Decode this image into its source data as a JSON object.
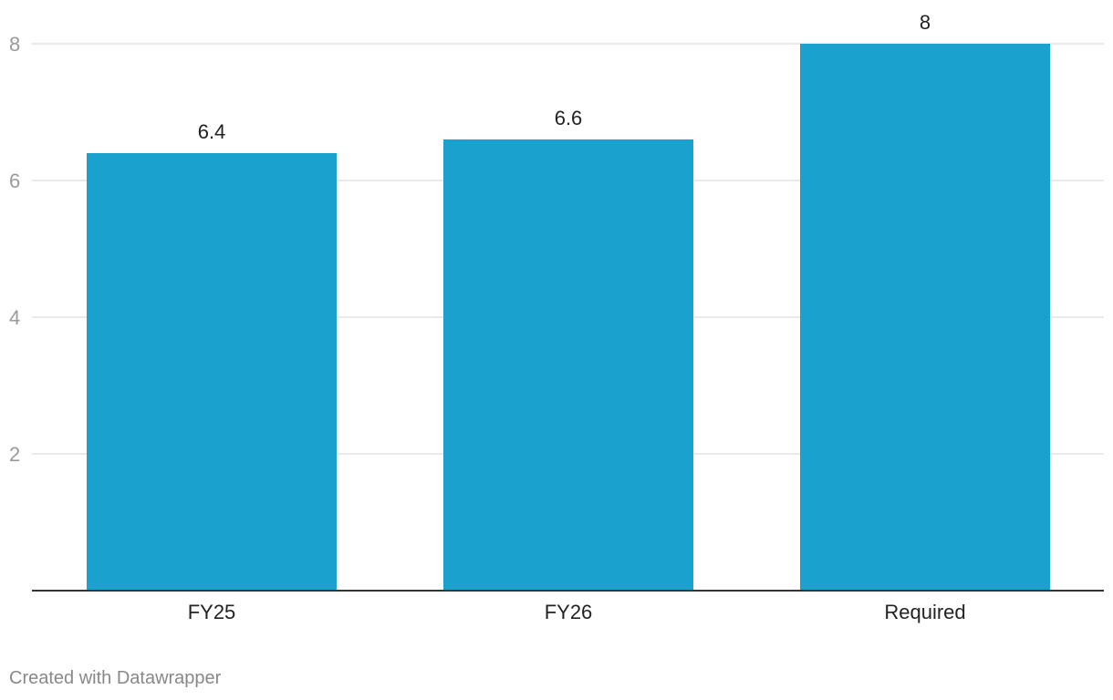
{
  "chart_data": {
    "type": "bar",
    "categories": [
      "FY25",
      "FY26",
      "Required"
    ],
    "values": [
      6.4,
      6.6,
      8
    ],
    "value_labels": [
      "6.4",
      "6.6",
      "8"
    ],
    "yticks": [
      2,
      4,
      6,
      8
    ],
    "ylim": [
      0,
      8
    ],
    "grid": true,
    "bar_color": "#1ba1cd",
    "title": "",
    "xlabel": "",
    "ylabel": ""
  },
  "footer": {
    "credit": "Created with Datawrapper"
  },
  "colors": {
    "gridline": "#e2e2e2",
    "axis_line": "#333333",
    "tick_label": "#9a9a9a",
    "text": "#222222"
  }
}
